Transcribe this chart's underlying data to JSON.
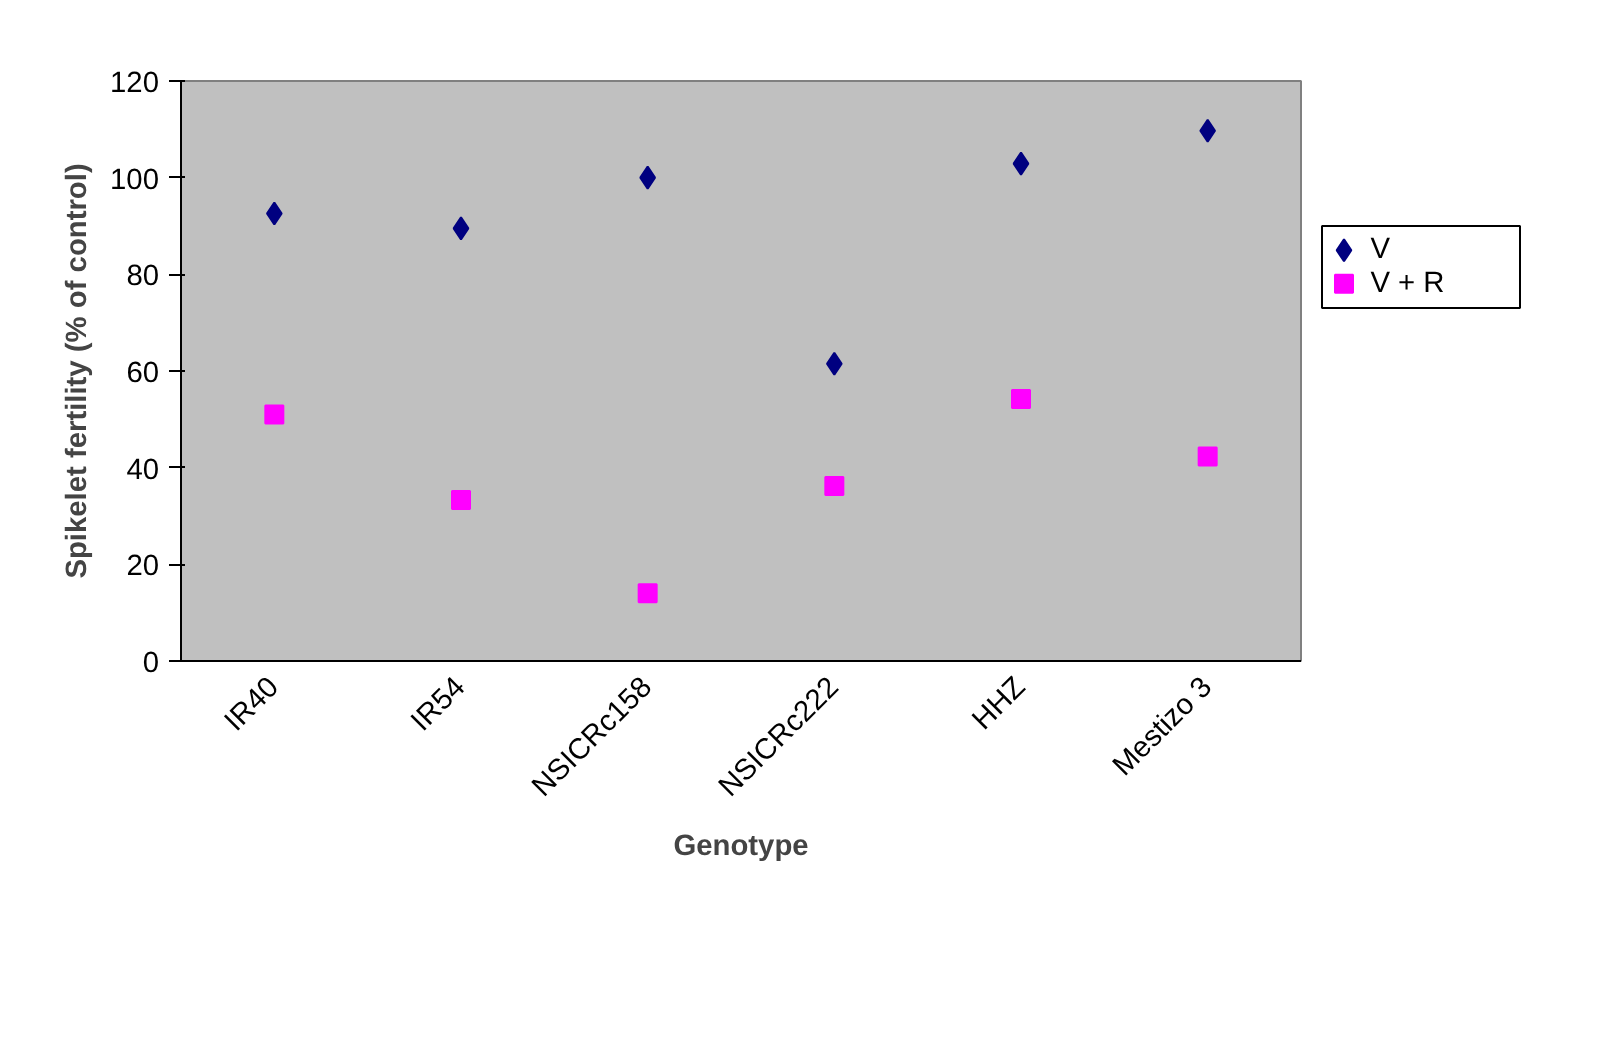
{
  "chart_data": {
    "type": "scatter",
    "xlabel": "Genotype",
    "ylabel": "Spikelet fertility (% of control)",
    "categories": [
      "IR40",
      "IR54",
      "NSICRc158",
      "NSICRc222",
      "HHZ",
      "Mestizo 3"
    ],
    "series": [
      {
        "name": "V",
        "color": "#000080",
        "marker": "diamond",
        "values": [
          92.6,
          89.5,
          100,
          61.5,
          102.9,
          109.7
        ]
      },
      {
        "name": "V + R",
        "color": "#ff00ff",
        "marker": "square",
        "values": [
          51,
          33.3,
          14,
          36.2,
          54.2,
          42.3
        ]
      }
    ],
    "ylim": [
      0,
      120
    ],
    "yticks": [
      0,
      20,
      40,
      60,
      80,
      100,
      120
    ],
    "grid": false,
    "legend": "right"
  }
}
